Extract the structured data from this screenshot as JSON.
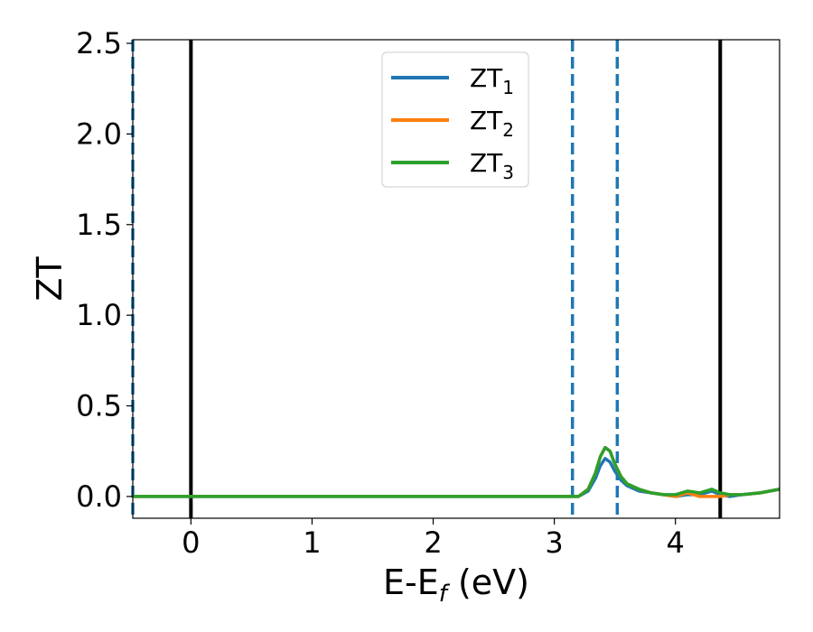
{
  "chart_data": {
    "type": "line",
    "xlabel": "E-E_f (eV)",
    "ylabel": "ZT",
    "xlim": [
      -0.48,
      4.86
    ],
    "ylim": [
      -0.12,
      2.52
    ],
    "xticks": [
      0,
      1,
      2,
      3,
      4
    ],
    "yticks": [
      0.0,
      0.5,
      1.0,
      1.5,
      2.0,
      2.5
    ],
    "xtick_labels": [
      "0",
      "1",
      "2",
      "3",
      "4"
    ],
    "ytick_labels": [
      "0.0",
      "0.5",
      "1.0",
      "1.5",
      "2.0",
      "2.5"
    ],
    "grid": false,
    "legend_position": "top-center",
    "vertical_lines": [
      {
        "x": -0.48,
        "style": "dashed",
        "color": "#1f77b4"
      },
      {
        "x": 0.0,
        "style": "solid",
        "color": "#000000"
      },
      {
        "x": 3.15,
        "style": "dashed",
        "color": "#1f77b4"
      },
      {
        "x": 3.52,
        "style": "dashed",
        "color": "#1f77b4"
      },
      {
        "x": 4.37,
        "style": "solid",
        "color": "#000000"
      }
    ],
    "series": [
      {
        "name": "ZT1",
        "label_main": "ZT",
        "label_sub": "1",
        "color": "#1f77b4",
        "x": [
          -0.48,
          3.0,
          3.2,
          3.28,
          3.34,
          3.38,
          3.42,
          3.46,
          3.5,
          3.55,
          3.6,
          3.7,
          3.8,
          3.9,
          4.0,
          4.1,
          4.2,
          4.3,
          4.37,
          4.45,
          4.55,
          4.7,
          4.86
        ],
        "y": [
          0.0,
          0.0,
          0.0,
          0.03,
          0.1,
          0.17,
          0.21,
          0.19,
          0.14,
          0.09,
          0.06,
          0.03,
          0.02,
          0.01,
          0.0,
          0.01,
          0.01,
          0.03,
          0.01,
          0.0,
          0.01,
          0.02,
          0.04
        ]
      },
      {
        "name": "ZT2",
        "label_main": "ZT",
        "label_sub": "2",
        "color": "#ff7f0e",
        "x": [
          -0.48,
          3.0,
          3.2,
          3.28,
          3.34,
          3.38,
          3.42,
          3.46,
          3.5,
          3.55,
          3.6,
          3.7,
          3.8,
          3.9,
          4.0,
          4.1,
          4.2,
          4.3,
          4.37,
          4.45,
          4.55,
          4.7,
          4.86
        ],
        "y": [
          0.0,
          0.0,
          0.0,
          0.04,
          0.13,
          0.22,
          0.27,
          0.25,
          0.18,
          0.11,
          0.07,
          0.04,
          0.02,
          0.01,
          0.0,
          0.02,
          0.0,
          0.0,
          0.0,
          0.01,
          0.01,
          0.02,
          0.04
        ]
      },
      {
        "name": "ZT3",
        "label_main": "ZT",
        "label_sub": "3",
        "color": "#2ca02c",
        "x": [
          -0.48,
          3.0,
          3.2,
          3.28,
          3.34,
          3.38,
          3.42,
          3.46,
          3.5,
          3.55,
          3.6,
          3.7,
          3.8,
          3.9,
          4.0,
          4.1,
          4.2,
          4.3,
          4.37,
          4.45,
          4.55,
          4.7,
          4.86
        ],
        "y": [
          0.0,
          0.0,
          0.0,
          0.04,
          0.13,
          0.22,
          0.27,
          0.25,
          0.18,
          0.11,
          0.07,
          0.04,
          0.02,
          0.01,
          0.01,
          0.03,
          0.02,
          0.04,
          0.02,
          0.01,
          0.01,
          0.02,
          0.04
        ]
      }
    ]
  }
}
